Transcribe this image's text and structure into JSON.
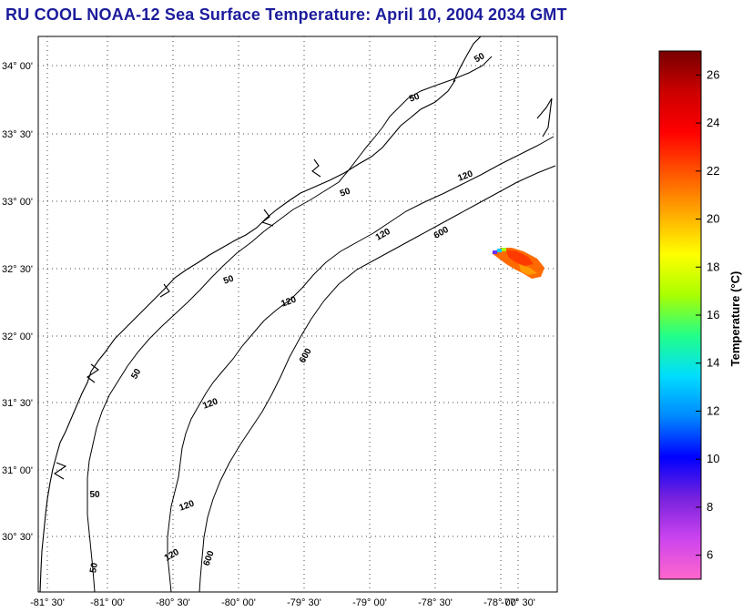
{
  "title": "RU COOL  NOAA-12  Sea Surface Temperature:  April 10, 2004 2034 GMT",
  "map": {
    "lon_ticks": [
      "-81° 30'",
      "-81° 00'",
      "-80° 30'",
      "-80° 00'",
      "-79° 30'",
      "-79° 00'",
      "-78° 30'",
      "-78° 00'",
      "-77° 30'"
    ],
    "lat_ticks": [
      "34° 00'",
      "33° 30'",
      "33° 00'",
      "32° 30'",
      "32° 00'",
      "31° 30'",
      "31° 00'",
      "30° 30'"
    ],
    "grid": "dotted",
    "contour_labels": [
      "50",
      "50",
      "50",
      "50",
      "50",
      "50",
      "50",
      "120",
      "120",
      "120",
      "120",
      "120",
      "120",
      "600",
      "600",
      "600"
    ]
  },
  "colorbar": {
    "title": "Temperature (°C)",
    "range": [
      5,
      27
    ],
    "ticks": [
      "26",
      "24",
      "22",
      "20",
      "18",
      "16",
      "14",
      "12",
      "10",
      "8",
      "6"
    ],
    "colors": [
      "#ff66cc",
      "#cc44ee",
      "#7722dd",
      "#0000ff",
      "#0088ff",
      "#00ddff",
      "#22ff88",
      "#aaff00",
      "#ffff00",
      "#ffaa00",
      "#ff5500",
      "#ff0000",
      "#cc0000",
      "#770000"
    ]
  }
}
